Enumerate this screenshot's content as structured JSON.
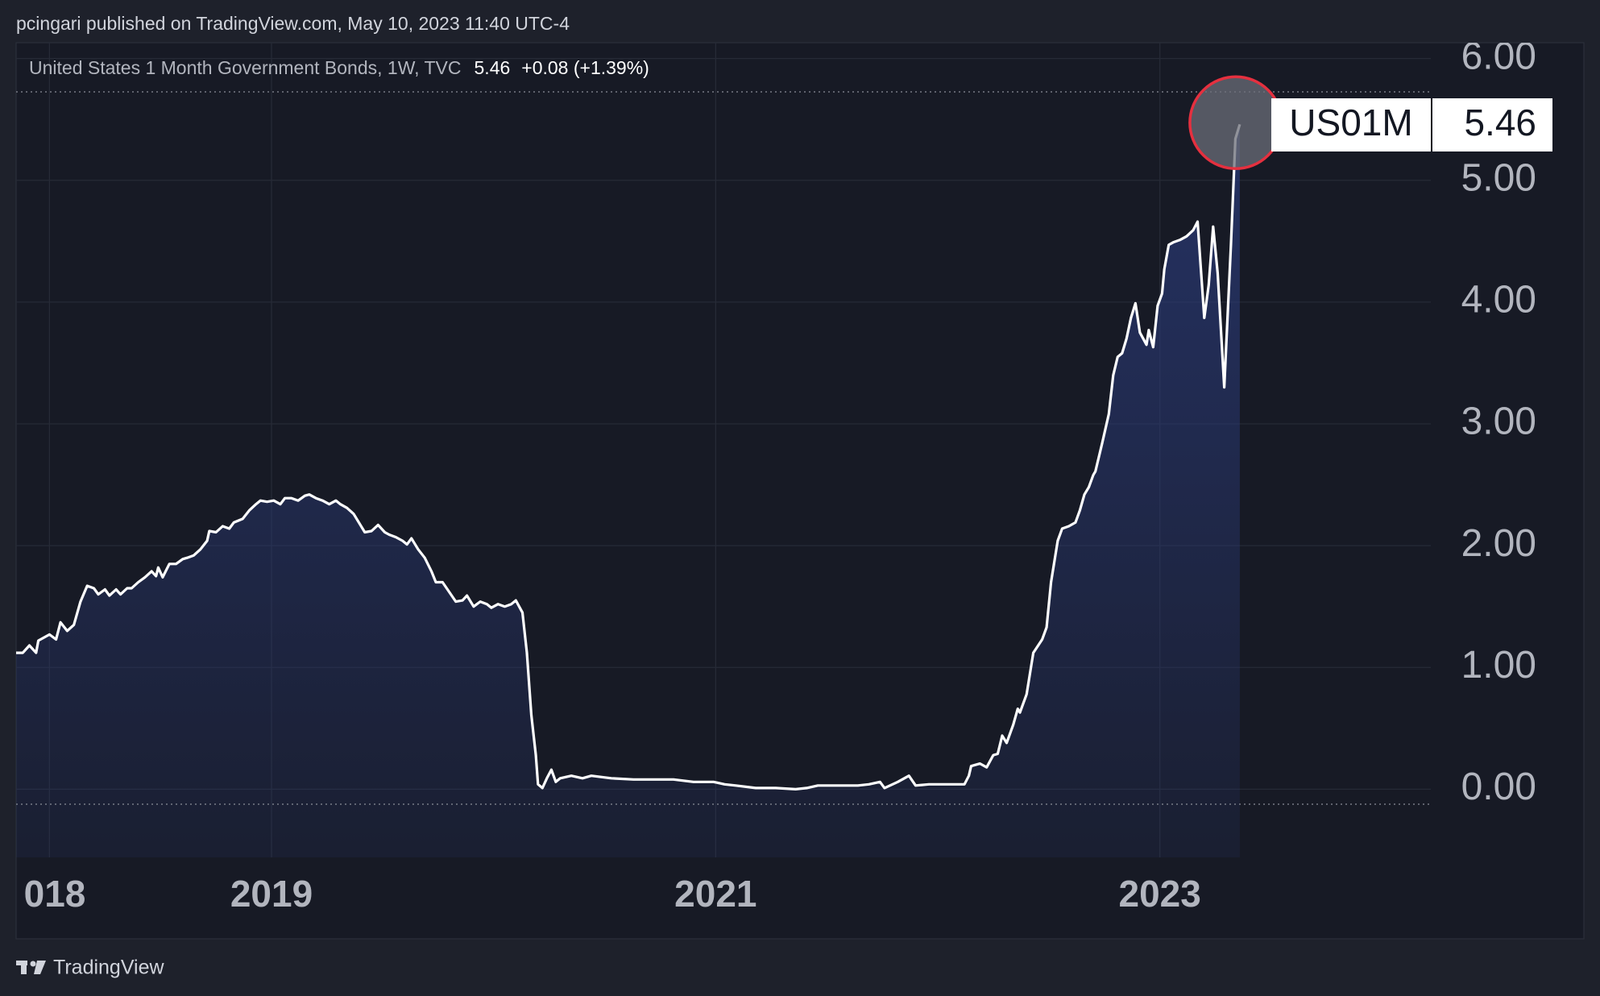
{
  "published": "pcingari published on TradingView.com, May 10, 2023 11:40 UTC-4",
  "brand": "TradingView",
  "chart_data": {
    "type": "area",
    "title": "United States 1 Month Government Bonds, 1W, TVC",
    "symbol": "US01M",
    "last": 5.46,
    "change": "+0.08 (+1.39%)",
    "color": "#ffffff",
    "fill_color": "#2a3a78",
    "grid": true,
    "xlim": [
      2017.85,
      2024.22
    ],
    "ylim": [
      -0.56,
      6.13
    ],
    "xticks": [
      {
        "value": 2018,
        "label": "018"
      },
      2019,
      2021,
      2023
    ],
    "yticks": [
      {
        "value": 0,
        "label": "0.00"
      },
      {
        "value": 1,
        "label": "1.00"
      },
      {
        "value": 2,
        "label": "2.00"
      },
      {
        "value": 3,
        "label": "3.00"
      },
      {
        "value": 4,
        "label": "4.00"
      },
      {
        "value": 5,
        "label": "5.00"
      },
      {
        "value": 6,
        "label": "6.00"
      }
    ],
    "x": [
      2017.85,
      2017.88,
      2017.91,
      2017.94,
      2017.95,
      2018.0,
      2018.03,
      2018.05,
      2018.08,
      2018.11,
      2018.14,
      2018.17,
      2018.2,
      2018.22,
      2018.25,
      2018.27,
      2018.3,
      2018.32,
      2018.35,
      2018.37,
      2018.4,
      2018.43,
      2018.46,
      2018.48,
      2018.49,
      2018.51,
      2018.54,
      2018.57,
      2018.6,
      2018.62,
      2018.65,
      2018.68,
      2018.71,
      2018.72,
      2018.75,
      2018.78,
      2018.81,
      2018.83,
      2018.87,
      2018.9,
      2018.93,
      2018.95,
      2018.98,
      2019.01,
      2019.04,
      2019.06,
      2019.09,
      2019.12,
      2019.15,
      2019.17,
      2019.2,
      2019.23,
      2019.26,
      2019.29,
      2019.31,
      2019.34,
      2019.37,
      2019.4,
      2019.42,
      2019.45,
      2019.48,
      2019.51,
      2019.53,
      2019.56,
      2019.59,
      2019.61,
      2019.63,
      2019.66,
      2019.69,
      2019.72,
      2019.74,
      2019.77,
      2019.8,
      2019.83,
      2019.86,
      2019.88,
      2019.91,
      2019.94,
      2019.97,
      2019.99,
      2020.02,
      2020.05,
      2020.08,
      2020.1,
      2020.13,
      2020.15,
      2020.17,
      2020.19,
      2020.2,
      2020.22,
      2020.24,
      2020.26,
      2020.28,
      2020.3,
      2020.35,
      2020.4,
      2020.44,
      2020.53,
      2020.63,
      2020.72,
      2020.81,
      2020.9,
      2020.99,
      2021.04,
      2021.09,
      2021.18,
      2021.27,
      2021.36,
      2021.41,
      2021.46,
      2021.55,
      2021.64,
      2021.69,
      2021.74,
      2021.76,
      2021.82,
      2021.87,
      2021.9,
      2021.96,
      2022.05,
      2022.12,
      2022.14,
      2022.15,
      2022.19,
      2022.22,
      2022.25,
      2022.27,
      2022.29,
      2022.31,
      2022.34,
      2022.36,
      2022.37,
      2022.4,
      2022.43,
      2022.47,
      2022.49,
      2022.51,
      2022.54,
      2022.56,
      2022.59,
      2022.62,
      2022.64,
      2022.66,
      2022.68,
      2022.7,
      2022.71,
      2022.74,
      2022.77,
      2022.79,
      2022.81,
      2022.83,
      2022.85,
      2022.87,
      2022.89,
      2022.91,
      2022.94,
      2022.95,
      2022.97,
      2022.99,
      2023.01,
      2023.02,
      2023.04,
      2023.06,
      2023.09,
      2023.12,
      2023.15,
      2023.17,
      2023.2,
      2023.22,
      2023.24,
      2023.26,
      2023.29,
      2023.32,
      2023.34,
      2023.36
    ],
    "values": [
      1.12,
      1.12,
      1.18,
      1.12,
      1.22,
      1.27,
      1.23,
      1.37,
      1.3,
      1.35,
      1.54,
      1.67,
      1.65,
      1.6,
      1.64,
      1.59,
      1.64,
      1.6,
      1.65,
      1.65,
      1.7,
      1.74,
      1.79,
      1.75,
      1.82,
      1.74,
      1.85,
      1.85,
      1.89,
      1.9,
      1.92,
      1.97,
      2.04,
      2.12,
      2.11,
      2.16,
      2.14,
      2.19,
      2.22,
      2.29,
      2.34,
      2.37,
      2.36,
      2.37,
      2.34,
      2.39,
      2.39,
      2.37,
      2.41,
      2.42,
      2.39,
      2.37,
      2.34,
      2.37,
      2.34,
      2.31,
      2.26,
      2.17,
      2.11,
      2.12,
      2.17,
      2.11,
      2.09,
      2.07,
      2.04,
      2.01,
      2.06,
      1.97,
      1.9,
      1.79,
      1.7,
      1.7,
      1.62,
      1.54,
      1.55,
      1.59,
      1.5,
      1.54,
      1.52,
      1.49,
      1.52,
      1.5,
      1.52,
      1.55,
      1.45,
      1.12,
      0.61,
      0.28,
      0.04,
      0.01,
      0.09,
      0.16,
      0.06,
      0.09,
      0.11,
      0.09,
      0.11,
      0.09,
      0.08,
      0.08,
      0.08,
      0.06,
      0.06,
      0.04,
      0.03,
      0.01,
      0.01,
      0.0,
      0.01,
      0.03,
      0.03,
      0.03,
      0.04,
      0.06,
      0.01,
      0.06,
      0.11,
      0.03,
      0.04,
      0.04,
      0.04,
      0.11,
      0.19,
      0.21,
      0.18,
      0.28,
      0.29,
      0.44,
      0.38,
      0.53,
      0.66,
      0.63,
      0.78,
      1.12,
      1.23,
      1.33,
      1.7,
      2.04,
      2.14,
      2.16,
      2.19,
      2.29,
      2.42,
      2.48,
      2.58,
      2.61,
      2.84,
      3.08,
      3.4,
      3.55,
      3.58,
      3.7,
      3.87,
      3.99,
      3.75,
      3.65,
      3.77,
      3.63,
      3.97,
      4.07,
      4.27,
      4.47,
      4.49,
      4.51,
      4.54,
      4.59,
      4.66,
      3.87,
      4.14,
      4.62,
      4.24,
      3.3,
      4.47,
      5.34,
      5.46
    ]
  }
}
